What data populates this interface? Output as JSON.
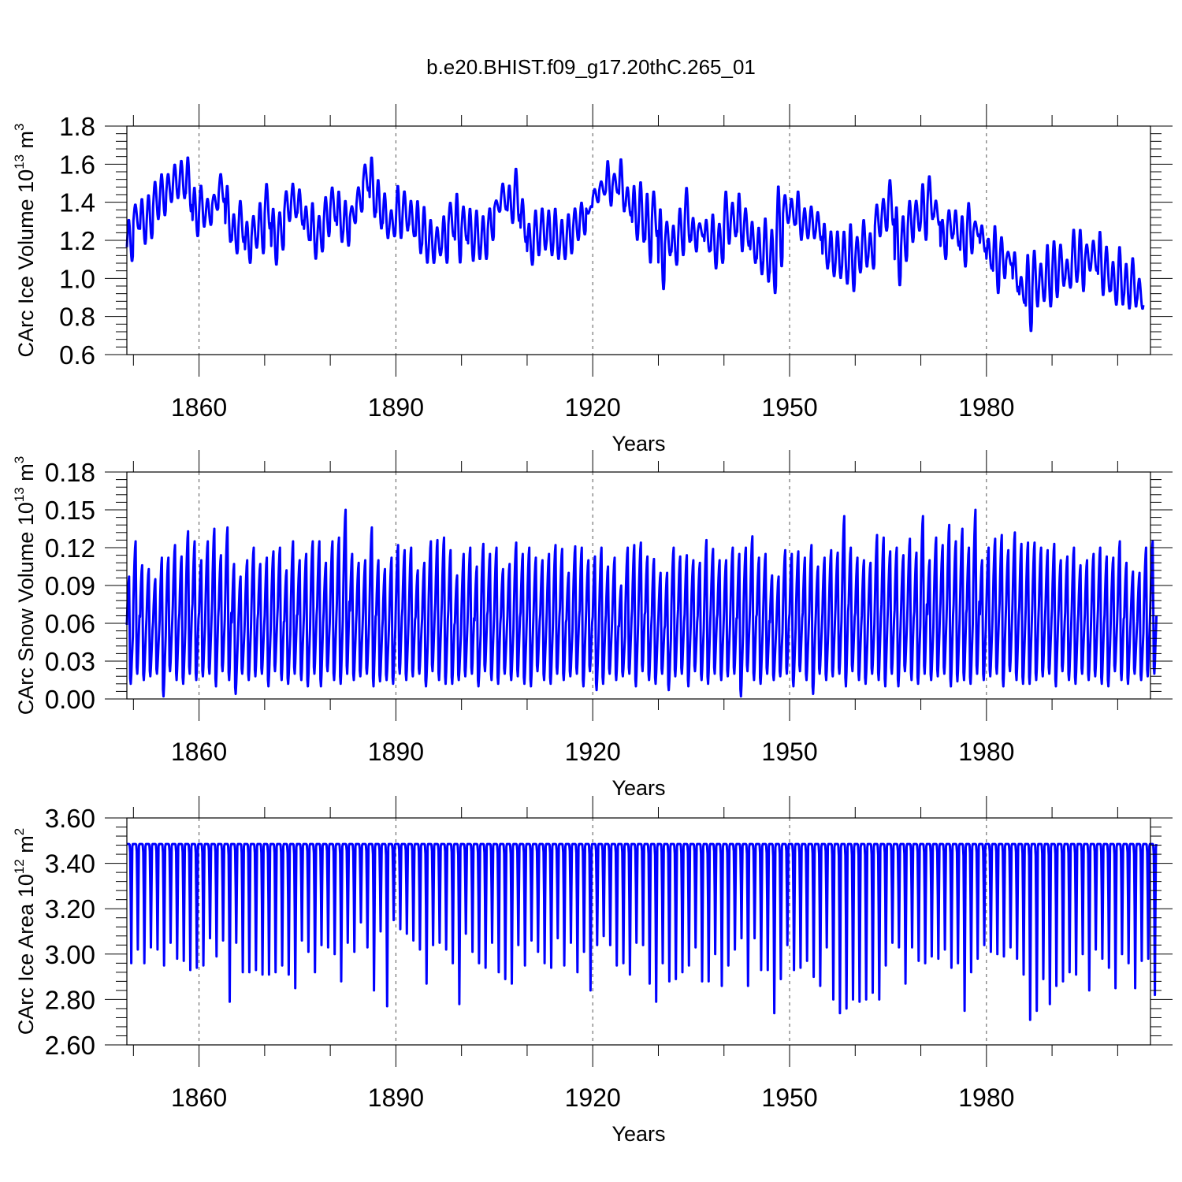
{
  "title": "b.e20.BHIST.f09_g17.20thC.265_01",
  "colors": {
    "line": "#0000ff",
    "axis": "#000000",
    "grid": "#555555"
  },
  "chart_data": [
    {
      "type": "line",
      "title": "b.e20.BHIST.f09_g17.20thC.265_01",
      "xlabel": "Years",
      "ylabel_main": "CArc Ice Volume 10",
      "ylabel_exp": "13",
      "ylabel_unit": " m",
      "ylabel_unit_exp": "3",
      "xlim": [
        1849,
        2005
      ],
      "ylim": [
        0.6,
        1.8
      ],
      "x_ticks": [
        1860,
        1890,
        1920,
        1950,
        1980
      ],
      "x_tick_labels": [
        "1860",
        "1890",
        "1920",
        "1950",
        "1980"
      ],
      "y_ticks": [
        0.6,
        0.8,
        1.0,
        1.2,
        1.4,
        1.6,
        1.8
      ],
      "y_tick_labels": [
        "0.6",
        "0.8",
        "1.0",
        "1.2",
        "1.4",
        "1.6",
        "1.8"
      ],
      "grid": "dashed vertical at x ticks",
      "series": [
        {
          "name": "CArc Ice Volume",
          "annual_max": [
            1.31,
            1.39,
            1.42,
            1.44,
            1.51,
            1.55,
            1.55,
            1.6,
            1.62,
            1.64,
            1.48,
            1.49,
            1.42,
            1.44,
            1.55,
            1.49,
            1.34,
            1.41,
            1.3,
            1.33,
            1.4,
            1.5,
            1.37,
            1.35,
            1.46,
            1.5,
            1.47,
            1.38,
            1.4,
            1.33,
            1.43,
            1.48,
            1.46,
            1.41,
            1.38,
            1.48,
            1.6,
            1.64,
            1.52,
            1.45,
            1.36,
            1.49,
            1.46,
            1.41,
            1.41,
            1.38,
            1.31,
            1.27,
            1.33,
            1.4,
            1.45,
            1.38,
            1.37,
            1.36,
            1.33,
            1.37,
            1.41,
            1.5,
            1.49,
            1.58,
            1.42,
            1.29,
            1.36,
            1.37,
            1.36,
            1.37,
            1.31,
            1.34,
            1.37,
            1.4,
            1.34,
            1.47,
            1.51,
            1.62,
            1.55,
            1.63,
            1.48,
            1.49,
            1.51,
            1.45,
            1.46,
            1.37,
            1.3,
            1.28,
            1.37,
            1.48,
            1.32,
            1.29,
            1.31,
            1.34,
            1.29,
            1.46,
            1.4,
            1.45,
            1.37,
            1.3,
            1.27,
            1.32,
            1.26,
            1.49,
            1.44,
            1.42,
            1.46,
            1.37,
            1.38,
            1.35,
            1.29,
            1.25,
            1.25,
            1.25,
            1.29,
            1.22,
            1.31,
            1.24,
            1.39,
            1.42,
            1.52,
            1.38,
            1.33,
            1.41,
            1.41,
            1.5,
            1.54,
            1.41,
            1.31,
            1.36,
            1.36,
            1.33,
            1.4,
            1.3,
            1.28,
            1.21,
            1.28,
            1.22,
            1.14,
            1.14,
            1.01,
            1.13,
            1.15,
            1.08,
            1.18,
            1.2,
            1.18,
            1.1,
            1.26,
            1.26,
            1.18,
            1.2,
            1.25,
            1.17,
            1.09,
            1.17,
            1.08,
            1.11,
            1.0
          ],
          "annual_min": [
            1.09,
            1.26,
            1.18,
            1.21,
            1.31,
            1.33,
            1.4,
            1.42,
            1.42,
            1.35,
            1.22,
            1.27,
            1.28,
            1.36,
            1.4,
            1.19,
            1.13,
            1.19,
            1.08,
            1.16,
            1.13,
            1.26,
            1.07,
            1.15,
            1.3,
            1.32,
            1.28,
            1.2,
            1.1,
            1.14,
            1.22,
            1.3,
            1.19,
            1.17,
            1.29,
            1.35,
            1.46,
            1.32,
            1.26,
            1.21,
            1.22,
            1.21,
            1.25,
            1.22,
            1.13,
            1.08,
            1.08,
            1.12,
            1.08,
            1.22,
            1.08,
            1.2,
            1.09,
            1.1,
            1.1,
            1.2,
            1.35,
            1.36,
            1.29,
            1.3,
            1.19,
            1.07,
            1.12,
            1.15,
            1.12,
            1.1,
            1.1,
            1.13,
            1.2,
            1.23,
            1.38,
            1.4,
            1.44,
            1.38,
            1.45,
            1.35,
            1.33,
            1.2,
            1.19,
            1.08,
            1.22,
            0.94,
            1.12,
            1.07,
            1.12,
            1.19,
            1.14,
            1.22,
            1.14,
            1.05,
            1.08,
            1.18,
            1.22,
            1.14,
            1.17,
            1.08,
            1.02,
            0.98,
            0.92,
            1.06,
            1.29,
            1.28,
            1.2,
            1.21,
            1.21,
            1.2,
            1.05,
            1.01,
            1.0,
            0.97,
            0.93,
            1.03,
            1.06,
            1.05,
            1.22,
            1.25,
            1.28,
            0.96,
            1.09,
            1.19,
            1.25,
            1.2,
            1.31,
            1.28,
            1.1,
            1.21,
            1.17,
            1.06,
            1.13,
            1.22,
            1.14,
            1.05,
            0.92,
            1.0,
            1.07,
            0.93,
            0.87,
            0.72,
            0.85,
            0.88,
            0.85,
            0.9,
            0.96,
            0.95,
            0.98,
            0.93,
            1.04,
            1.04,
            0.91,
            0.93,
            0.86,
            0.86,
            0.84,
            0.85,
            0.84
          ]
        }
      ]
    },
    {
      "type": "line",
      "xlabel": "Years",
      "ylabel_main": "CArc Snow Volume 10",
      "ylabel_exp": "13",
      "ylabel_unit": " m",
      "ylabel_unit_exp": "3",
      "xlim": [
        1849,
        2005
      ],
      "ylim": [
        0.0,
        0.18
      ],
      "x_ticks": [
        1860,
        1890,
        1920,
        1950,
        1980
      ],
      "x_tick_labels": [
        "1860",
        "1890",
        "1920",
        "1950",
        "1980"
      ],
      "y_ticks": [
        0.0,
        0.03,
        0.06,
        0.09,
        0.12,
        0.15,
        0.18
      ],
      "y_tick_labels": [
        "0.00",
        "0.03",
        "0.06",
        "0.09",
        "0.12",
        "0.15",
        "0.18"
      ],
      "grid": "dashed vertical at x ticks",
      "series": [
        {
          "name": "CArc Snow Volume",
          "annual_max": [
            0.097,
            0.125,
            0.106,
            0.103,
            0.095,
            0.112,
            0.112,
            0.122,
            0.113,
            0.133,
            0.125,
            0.11,
            0.125,
            0.135,
            0.114,
            0.136,
            0.107,
            0.097,
            0.11,
            0.12,
            0.107,
            0.112,
            0.117,
            0.12,
            0.102,
            0.125,
            0.11,
            0.115,
            0.125,
            0.125,
            0.108,
            0.125,
            0.128,
            0.15,
            0.115,
            0.108,
            0.11,
            0.136,
            0.11,
            0.103,
            0.112,
            0.122,
            0.118,
            0.12,
            0.102,
            0.108,
            0.125,
            0.126,
            0.128,
            0.118,
            0.098,
            0.115,
            0.12,
            0.105,
            0.123,
            0.115,
            0.12,
            0.103,
            0.107,
            0.124,
            0.115,
            0.12,
            0.112,
            0.11,
            0.115,
            0.122,
            0.119,
            0.1,
            0.121,
            0.12,
            0.11,
            0.113,
            0.12,
            0.105,
            0.112,
            0.09,
            0.12,
            0.122,
            0.124,
            0.113,
            0.111,
            0.1,
            0.1,
            0.12,
            0.113,
            0.114,
            0.11,
            0.108,
            0.126,
            0.119,
            0.11,
            0.11,
            0.12,
            0.115,
            0.12,
            0.129,
            0.112,
            0.115,
            0.098,
            0.097,
            0.118,
            0.115,
            0.117,
            0.112,
            0.122,
            0.105,
            0.112,
            0.118,
            0.116,
            0.145,
            0.12,
            0.112,
            0.11,
            0.108,
            0.13,
            0.128,
            0.117,
            0.12,
            0.114,
            0.127,
            0.116,
            0.145,
            0.11,
            0.128,
            0.122,
            0.138,
            0.125,
            0.135,
            0.12,
            0.15,
            0.11,
            0.12,
            0.127,
            0.13,
            0.118,
            0.132,
            0.123,
            0.124,
            0.124,
            0.12,
            0.118,
            0.123,
            0.11,
            0.113,
            0.12,
            0.106,
            0.11,
            0.115,
            0.12,
            0.113,
            0.112,
            0.125,
            0.108,
            0.101,
            0.1,
            0.12,
            0.125
          ]
        }
      ]
    },
    {
      "type": "line",
      "xlabel": "Years",
      "ylabel_main": "CArc Ice Area 10",
      "ylabel_exp": "12",
      "ylabel_unit": " m",
      "ylabel_unit_exp": "2",
      "xlim": [
        1849,
        2005
      ],
      "ylim": [
        2.6,
        3.6
      ],
      "x_ticks": [
        1860,
        1890,
        1920,
        1950,
        1980
      ],
      "x_tick_labels": [
        "1860",
        "1890",
        "1920",
        "1950",
        "1980"
      ],
      "y_ticks": [
        2.6,
        2.8,
        3.0,
        3.2,
        3.4,
        3.6
      ],
      "y_tick_labels": [
        "2.60",
        "2.80",
        "3.00",
        "3.20",
        "3.40",
        "3.60"
      ],
      "grid": "dashed vertical at x ticks",
      "series": [
        {
          "name": "CArc Ice Area",
          "annual_max": 3.485,
          "annual_min": [
            2.96,
            3.02,
            2.96,
            3.03,
            3.02,
            2.95,
            3.05,
            2.98,
            2.97,
            2.93,
            2.94,
            2.95,
            3.07,
            2.99,
            3.06,
            2.79,
            3.05,
            2.92,
            2.92,
            2.93,
            2.91,
            2.91,
            2.92,
            2.95,
            2.91,
            2.85,
            3.06,
            3.01,
            2.92,
            3.04,
            3.03,
            3.0,
            2.88,
            3.05,
            3.01,
            3.14,
            3.03,
            2.84,
            3.1,
            2.77,
            3.15,
            3.11,
            3.09,
            3.06,
            3.02,
            2.87,
            3.04,
            3.05,
            3.02,
            2.96,
            2.78,
            3.09,
            3.01,
            2.96,
            2.94,
            3.05,
            2.92,
            2.89,
            2.87,
            3.04,
            2.95,
            3.06,
            3.01,
            2.96,
            2.94,
            3.07,
            2.95,
            3.05,
            2.92,
            3.01,
            2.84,
            3.04,
            3.08,
            3.04,
            2.95,
            2.96,
            2.91,
            3.05,
            3.04,
            2.87,
            2.79,
            2.96,
            2.88,
            2.89,
            2.92,
            2.95,
            3.03,
            2.88,
            2.88,
            3.0,
            2.86,
            2.95,
            3.02,
            3.07,
            2.86,
            3.07,
            2.93,
            2.93,
            2.74,
            2.89,
            3.04,
            2.93,
            2.94,
            2.97,
            2.9,
            2.86,
            3.03,
            2.8,
            2.74,
            2.76,
            2.8,
            2.79,
            2.8,
            2.83,
            2.8,
            2.95,
            3.05,
            3.03,
            2.87,
            3.03,
            2.97,
            2.96,
            2.99,
            2.98,
            3.02,
            2.94,
            2.96,
            2.75,
            2.92,
            2.98,
            3.04,
            3.01,
            3.0,
            2.99,
            3.03,
            2.98,
            2.91,
            2.71,
            2.75,
            2.89,
            2.78,
            2.86,
            2.88,
            2.92,
            2.91,
            3.0,
            2.84,
            3.02,
            2.98,
            2.94,
            2.85,
            3.0,
            2.96,
            2.85,
            2.97,
            2.98,
            2.82
          ]
        }
      ]
    }
  ]
}
